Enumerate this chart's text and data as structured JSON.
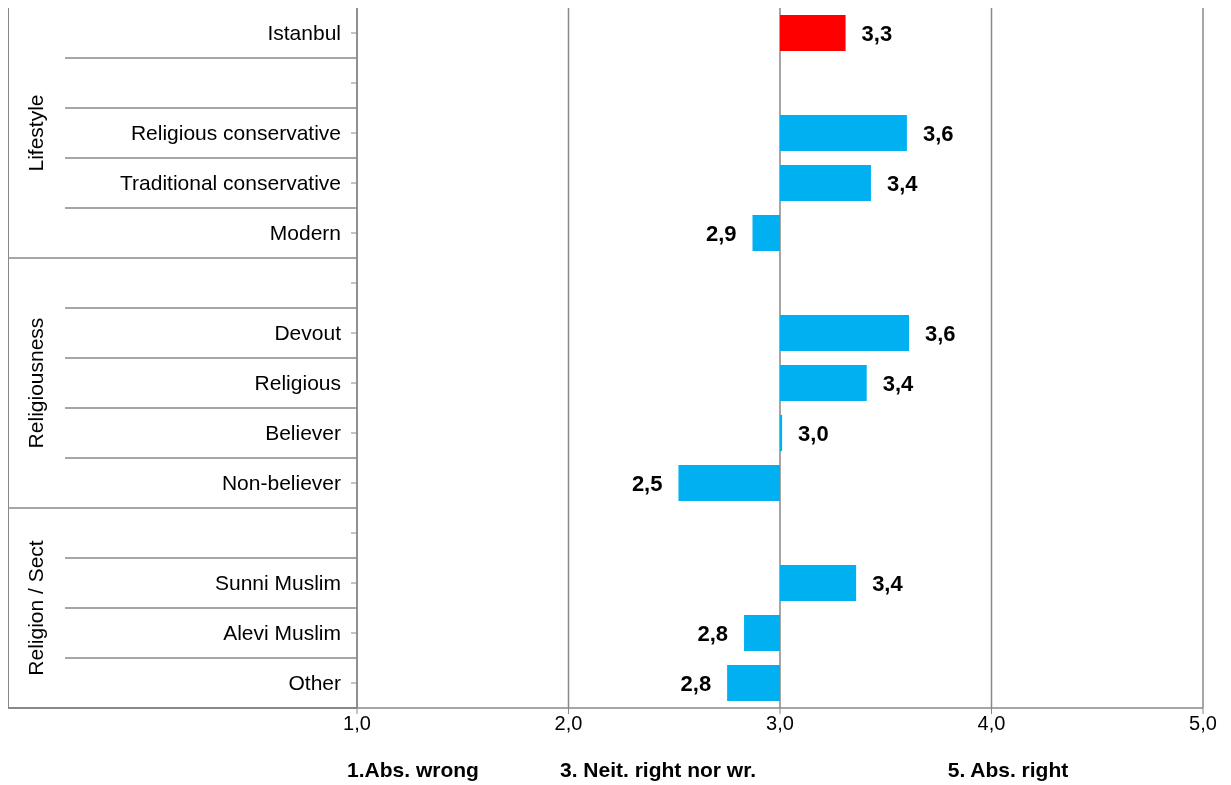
{
  "chart_data": {
    "type": "bar",
    "orientation": "horizontal",
    "categories": [
      "Istanbul",
      null,
      "Religious conservative",
      "Traditional conservative",
      "Modern",
      null,
      "Devout",
      "Religious",
      "Believer",
      "Non-believer",
      null,
      "Sunni Muslim",
      "Alevi Muslim",
      "Other"
    ],
    "base": [
      3,
      null,
      3,
      3,
      3,
      null,
      3,
      3,
      3,
      3,
      null,
      3,
      3,
      3
    ],
    "values": [
      0.31,
      null,
      0.6,
      0.43,
      -0.13,
      null,
      0.61,
      0.41,
      0.01,
      -0.48,
      null,
      0.36,
      -0.17,
      -0.25
    ],
    "value_labels": [
      "3,3",
      null,
      "3,6",
      "3,4",
      "2,9",
      null,
      "3,6",
      "3,4",
      "3,0",
      "2,5",
      null,
      "3,4",
      "2,8",
      "2,8"
    ],
    "colors": [
      "#ff0000",
      null,
      "#00b0f0",
      "#00b0f0",
      "#00b0f0",
      null,
      "#00b0f0",
      "#00b0f0",
      "#00b0f0",
      "#00b0f0",
      null,
      "#00b0f0",
      "#00b0f0",
      "#00b0f0"
    ],
    "xlim": [
      1,
      5
    ],
    "xticks": [
      {
        "value": 1,
        "label": "1,0"
      },
      {
        "value": 2,
        "label": "2,0"
      },
      {
        "value": 3,
        "label": "3,0"
      },
      {
        "value": 4,
        "label": "4,0"
      },
      {
        "value": 5,
        "label": "5,0"
      }
    ],
    "grid": "x",
    "annotations": [
      "Lifestyle",
      "Religiousness",
      "Religion / Sect",
      "1.Abs. wrong",
      "3. Neit. right nor wr.",
      "5. Abs. right"
    ]
  }
}
